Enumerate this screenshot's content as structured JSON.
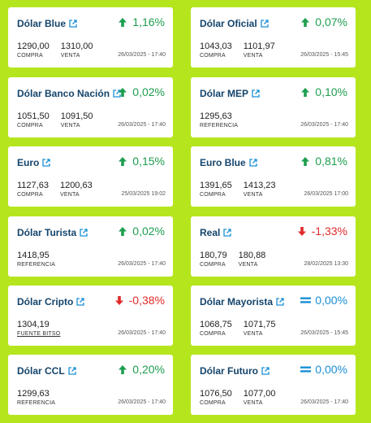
{
  "cards": [
    {
      "title": "Dólar Blue",
      "change": "1,16%",
      "dir": "up",
      "values": [
        {
          "num": "1290,00",
          "lbl": "COMPRA"
        },
        {
          "num": "1310,00",
          "lbl": "VENTA"
        }
      ],
      "date": "26/03/2025 - 17:40"
    },
    {
      "title": "Dólar Oficial",
      "change": "0,07%",
      "dir": "up",
      "values": [
        {
          "num": "1043,03",
          "lbl": "COMPRA"
        },
        {
          "num": "1101,97",
          "lbl": "VENTA"
        }
      ],
      "date": "26/03/2025 - 15:45"
    },
    {
      "title": "Dólar Banco Nación",
      "change": "0,02%",
      "dir": "up",
      "values": [
        {
          "num": "1051,50",
          "lbl": "COMPRA"
        },
        {
          "num": "1091,50",
          "lbl": "VENTA"
        }
      ],
      "date": "26/03/2025 - 17:40"
    },
    {
      "title": "Dólar MEP",
      "change": "0,10%",
      "dir": "up",
      "values": [
        {
          "num": "1295,63",
          "lbl": "REFERENCIA"
        }
      ],
      "date": "26/03/2025 - 17:40"
    },
    {
      "title": "Euro",
      "change": "0,15%",
      "dir": "up",
      "values": [
        {
          "num": "1127,63",
          "lbl": "COMPRA"
        },
        {
          "num": "1200,63",
          "lbl": "VENTA"
        }
      ],
      "date": "25/03/2025 19:02"
    },
    {
      "title": "Euro Blue",
      "change": "0,81%",
      "dir": "up",
      "values": [
        {
          "num": "1391,65",
          "lbl": "COMPRA"
        },
        {
          "num": "1413,23",
          "lbl": "VENTA"
        }
      ],
      "date": "26/03/2025 17:00"
    },
    {
      "title": "Dólar Turista",
      "change": "0,02%",
      "dir": "up",
      "values": [
        {
          "num": "1418,95",
          "lbl": "REFERENCIA"
        }
      ],
      "date": "26/03/2025 - 17:40"
    },
    {
      "title": "Real",
      "change": "-1,33%",
      "dir": "down",
      "values": [
        {
          "num": "180,79",
          "lbl": "COMPRA"
        },
        {
          "num": "180,88",
          "lbl": "VENTA"
        }
      ],
      "date": "28/02/2025 13:30"
    },
    {
      "title": "Dólar Cripto",
      "change": "-0,38%",
      "dir": "down",
      "values": [
        {
          "num": "1304,19",
          "lbl": "FUENTE BITSO",
          "link": true
        }
      ],
      "date": "26/03/2025 - 17:40"
    },
    {
      "title": "Dólar Mayorista",
      "change": "0,00%",
      "dir": "flat",
      "values": [
        {
          "num": "1068,75",
          "lbl": "COMPRA"
        },
        {
          "num": "1071,75",
          "lbl": "VENTA"
        }
      ],
      "date": "26/03/2025 - 15:45"
    },
    {
      "title": "Dólar CCL",
      "change": "0,20%",
      "dir": "up",
      "values": [
        {
          "num": "1299,63",
          "lbl": "REFERENCIA"
        }
      ],
      "date": "26/03/2025 - 17:40"
    },
    {
      "title": "Dólar Futuro",
      "change": "0,00%",
      "dir": "flat",
      "values": [
        {
          "num": "1076,50",
          "lbl": "COMPRA"
        },
        {
          "num": "1077,00",
          "lbl": "VENTA"
        }
      ],
      "date": "26/03/2025 - 17:40"
    }
  ],
  "colors": {
    "background": "#b5e61d",
    "title": "#14446b",
    "up": "#1e9e4f",
    "down": "#e02b2b",
    "flat": "#1a8fd6"
  },
  "icons": {
    "title": "external-link-icon",
    "up": "arrow-up-icon",
    "down": "arrow-down-icon",
    "flat": "equals-icon"
  }
}
